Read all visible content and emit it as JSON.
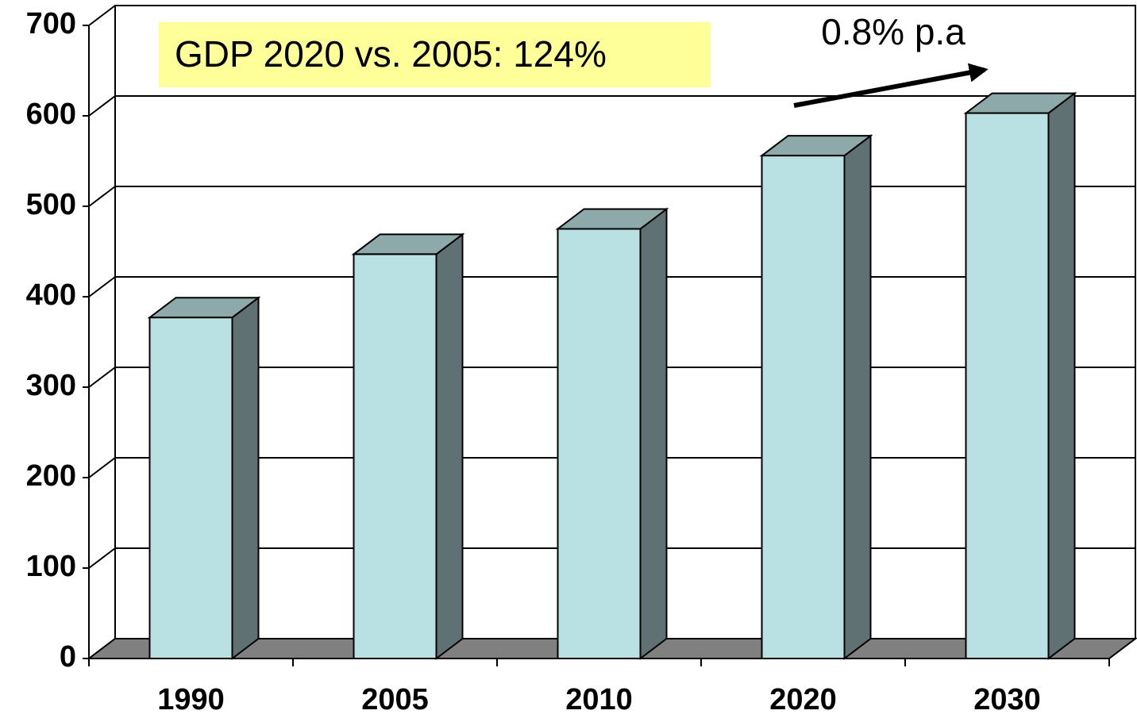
{
  "chart_data": {
    "type": "bar3d",
    "categories": [
      "1990",
      "2005",
      "2010",
      "2020",
      "2030"
    ],
    "values": [
      377,
      447,
      475,
      556,
      603
    ],
    "color": "#b9e0e2",
    "ylim": [
      0,
      700
    ],
    "yticks": [
      0,
      100,
      200,
      300,
      400,
      500,
      600,
      700
    ],
    "grid": true,
    "annotations": [
      "GDP 2020 vs. 2005: 124%",
      "0.8% p.a"
    ]
  }
}
